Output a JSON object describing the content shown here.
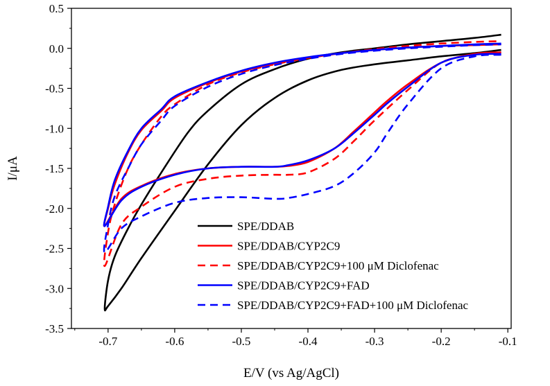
{
  "chart_data": {
    "type": "line",
    "xlabel": "E/V (vs Ag/AgCl)",
    "ylabel": "I/μA",
    "xlim": [
      -0.755,
      -0.095
    ],
    "ylim": [
      -3.5,
      0.5
    ],
    "x_ticks": [
      -0.7,
      -0.6,
      -0.5,
      -0.4,
      -0.3,
      -0.2,
      -0.1
    ],
    "x_tick_labels": [
      "-0.7",
      "-0.6",
      "-0.5",
      "-0.4",
      "-0.3",
      "-0.2",
      "-0.1"
    ],
    "y_ticks": [
      0.5,
      0.0,
      -0.5,
      -1.0,
      -1.5,
      -2.0,
      -2.5,
      -3.0,
      -3.5
    ],
    "y_tick_labels": [
      "0.5",
      "0.0",
      "-0.5",
      "-1.0",
      "-1.5",
      "-2.0",
      "-2.5",
      "-3.0",
      "-3.5"
    ],
    "grid": false,
    "legend_position": "bottom-right",
    "series": [
      {
        "name": "SPE/DDAB",
        "color": "#000000",
        "dash": "solid",
        "x": [
          -0.11,
          -0.15,
          -0.2,
          -0.25,
          -0.3,
          -0.35,
          -0.4,
          -0.45,
          -0.5,
          -0.55,
          -0.6,
          -0.65,
          -0.68,
          -0.7,
          -0.705,
          -0.7,
          -0.69,
          -0.67,
          -0.65,
          -0.62,
          -0.58,
          -0.55,
          -0.5,
          -0.45,
          -0.4,
          -0.35,
          -0.3,
          -0.25,
          -0.2,
          -0.15,
          -0.11
        ],
        "y": [
          -0.02,
          -0.06,
          -0.1,
          -0.15,
          -0.2,
          -0.27,
          -0.4,
          -0.62,
          -0.96,
          -1.45,
          -2.03,
          -2.62,
          -3.0,
          -3.22,
          -3.25,
          -2.9,
          -2.6,
          -2.25,
          -1.95,
          -1.55,
          -1.05,
          -0.78,
          -0.45,
          -0.26,
          -0.13,
          -0.05,
          0.0,
          0.05,
          0.09,
          0.13,
          0.17
        ]
      },
      {
        "name": "SPE/DDAB/CYP2C9",
        "color": "#ff0000",
        "dash": "solid",
        "x": [
          -0.11,
          -0.15,
          -0.2,
          -0.25,
          -0.28,
          -0.3,
          -0.33,
          -0.36,
          -0.4,
          -0.43,
          -0.45,
          -0.5,
          -0.55,
          -0.6,
          -0.65,
          -0.68,
          -0.705,
          -0.7,
          -0.69,
          -0.67,
          -0.65,
          -0.62,
          -0.6,
          -0.55,
          -0.5,
          -0.45,
          -0.4,
          -0.35,
          -0.3,
          -0.25,
          -0.2,
          -0.15,
          -0.11
        ],
        "y": [
          -0.05,
          -0.07,
          -0.18,
          -0.45,
          -0.65,
          -0.8,
          -1.03,
          -1.25,
          -1.42,
          -1.47,
          -1.48,
          -1.48,
          -1.5,
          -1.57,
          -1.72,
          -1.88,
          -2.22,
          -2.0,
          -1.7,
          -1.3,
          -1.02,
          -0.78,
          -0.62,
          -0.43,
          -0.29,
          -0.19,
          -0.12,
          -0.06,
          -0.02,
          0.01,
          0.03,
          0.04,
          0.05
        ]
      },
      {
        "name": "SPE/DDAB/CYP2C9+100 μM Diclofenac",
        "color": "#ff0000",
        "dash": "dashed",
        "x": [
          -0.11,
          -0.15,
          -0.2,
          -0.25,
          -0.3,
          -0.33,
          -0.36,
          -0.4,
          -0.43,
          -0.45,
          -0.5,
          -0.55,
          -0.6,
          -0.65,
          -0.68,
          -0.705,
          -0.7,
          -0.69,
          -0.67,
          -0.65,
          -0.62,
          -0.6,
          -0.55,
          -0.5,
          -0.45,
          -0.4,
          -0.35,
          -0.3,
          -0.25,
          -0.2,
          -0.15,
          -0.11
        ],
        "y": [
          -0.05,
          -0.08,
          -0.18,
          -0.52,
          -0.9,
          -1.15,
          -1.38,
          -1.55,
          -1.58,
          -1.58,
          -1.59,
          -1.63,
          -1.73,
          -1.98,
          -2.2,
          -2.72,
          -2.3,
          -1.95,
          -1.5,
          -1.2,
          -0.85,
          -0.7,
          -0.45,
          -0.3,
          -0.2,
          -0.12,
          -0.06,
          -0.01,
          0.03,
          0.06,
          0.08,
          0.09
        ]
      },
      {
        "name": "SPE/DDAB/CYP2C9+FAD",
        "color": "#0000ff",
        "dash": "solid",
        "x": [
          -0.11,
          -0.15,
          -0.2,
          -0.25,
          -0.28,
          -0.3,
          -0.33,
          -0.36,
          -0.4,
          -0.43,
          -0.45,
          -0.5,
          -0.55,
          -0.6,
          -0.65,
          -0.68,
          -0.705,
          -0.7,
          -0.69,
          -0.67,
          -0.65,
          -0.62,
          -0.6,
          -0.55,
          -0.5,
          -0.45,
          -0.4,
          -0.35,
          -0.3,
          -0.25,
          -0.2,
          -0.15,
          -0.11
        ],
        "y": [
          -0.07,
          -0.08,
          -0.18,
          -0.48,
          -0.68,
          -0.83,
          -1.05,
          -1.25,
          -1.4,
          -1.46,
          -1.48,
          -1.48,
          -1.5,
          -1.58,
          -1.73,
          -1.9,
          -2.22,
          -1.98,
          -1.65,
          -1.28,
          -1.0,
          -0.76,
          -0.6,
          -0.42,
          -0.28,
          -0.18,
          -0.11,
          -0.06,
          -0.02,
          0.01,
          0.03,
          0.05,
          0.06
        ]
      },
      {
        "name": "SPE/DDAB/CYP2C9+FAD+100 μM Diclofenac",
        "color": "#0000ff",
        "dash": "dashed",
        "x": [
          -0.11,
          -0.15,
          -0.2,
          -0.25,
          -0.28,
          -0.3,
          -0.33,
          -0.36,
          -0.4,
          -0.43,
          -0.45,
          -0.5,
          -0.55,
          -0.6,
          -0.65,
          -0.68,
          -0.705,
          -0.7,
          -0.69,
          -0.67,
          -0.65,
          -0.62,
          -0.6,
          -0.55,
          -0.5,
          -0.45,
          -0.4,
          -0.35,
          -0.3,
          -0.25,
          -0.2,
          -0.15,
          -0.11
        ],
        "y": [
          -0.08,
          -0.1,
          -0.25,
          -0.7,
          -1.05,
          -1.3,
          -1.55,
          -1.72,
          -1.82,
          -1.87,
          -1.88,
          -1.86,
          -1.87,
          -1.93,
          -2.1,
          -2.25,
          -2.55,
          -2.2,
          -1.85,
          -1.5,
          -1.2,
          -0.9,
          -0.72,
          -0.48,
          -0.32,
          -0.21,
          -0.13,
          -0.07,
          -0.03,
          0.0,
          0.02,
          0.04,
          0.05
        ]
      }
    ]
  }
}
